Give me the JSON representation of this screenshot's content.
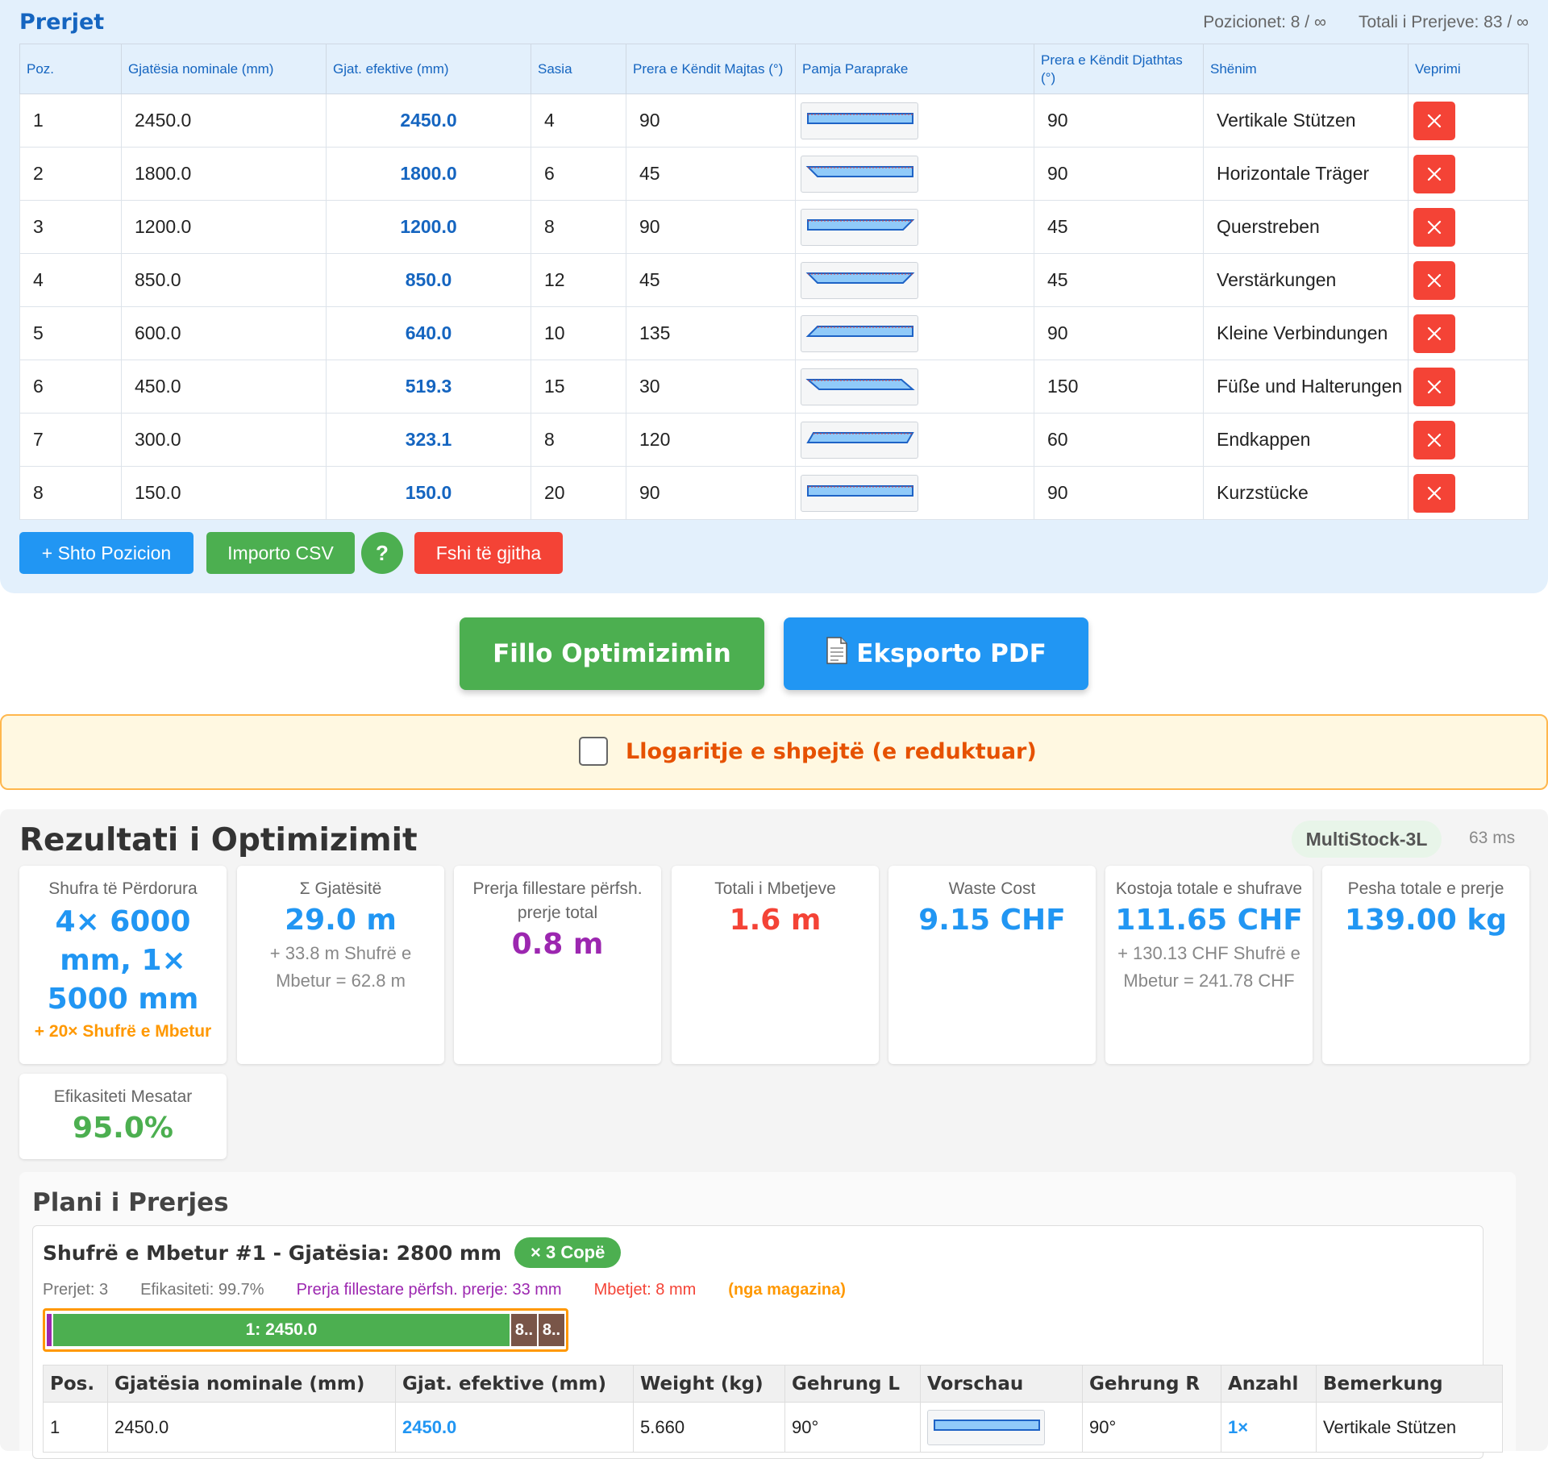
{
  "cuts": {
    "title": "Prerjet",
    "positions_stat": "Pozicionet: 8 / ∞",
    "total_stat": "Totali i Prerjeve: 83 / ∞",
    "columns": {
      "pos": "Poz.",
      "nominal": "Gjatësia nominale (mm)",
      "effective": "Gjat. efektive (mm)",
      "qty": "Sasia",
      "left_angle": "Prera e Këndit Majtas (°)",
      "preview": "Pamja Paraprake",
      "right_angle": "Prera e Këndit Djathtas (°)",
      "note": "Shënim",
      "action": "Veprimi"
    },
    "rows": [
      {
        "pos": "1",
        "nominal": "2450.0",
        "effective": "2450.0",
        "qty": "4",
        "left": "90",
        "right": "90",
        "note": "Vertikale Stützen"
      },
      {
        "pos": "2",
        "nominal": "1800.0",
        "effective": "1800.0",
        "qty": "6",
        "left": "45",
        "right": "90",
        "note": "Horizontale Träger"
      },
      {
        "pos": "3",
        "nominal": "1200.0",
        "effective": "1200.0",
        "qty": "8",
        "left": "90",
        "right": "45",
        "note": "Querstreben"
      },
      {
        "pos": "4",
        "nominal": "850.0",
        "effective": "850.0",
        "qty": "12",
        "left": "45",
        "right": "45",
        "note": "Verstärkungen"
      },
      {
        "pos": "5",
        "nominal": "600.0",
        "effective": "640.0",
        "qty": "10",
        "left": "135",
        "right": "90",
        "note": "Kleine Verbindungen"
      },
      {
        "pos": "6",
        "nominal": "450.0",
        "effective": "519.3",
        "qty": "15",
        "left": "30",
        "right": "150",
        "note": "Füße und Halterungen"
      },
      {
        "pos": "7",
        "nominal": "300.0",
        "effective": "323.1",
        "qty": "8",
        "left": "120",
        "right": "60",
        "note": "Endkappen"
      },
      {
        "pos": "8",
        "nominal": "150.0",
        "effective": "150.0",
        "qty": "20",
        "left": "90",
        "right": "90",
        "note": "Kurzstücke"
      }
    ],
    "buttons": {
      "add": "+ Shto Pozicion",
      "import": "Importo CSV",
      "help": "?",
      "clear": "Fshi të gjitha"
    }
  },
  "actions": {
    "optimize": "Fillo Optimizimin",
    "export": "Eksporto PDF"
  },
  "fast_mode": {
    "label": "Llogaritje e shpejtë (e reduktuar)",
    "checked": false
  },
  "results": {
    "title": "Rezultati i Optimizimit",
    "algorithm": "MultiStock-3L",
    "time": "63 ms",
    "cards": {
      "bars": {
        "label": "Shufra të Përdorura",
        "value": "4× 6000 mm, 1× 5000 mm",
        "sub": "+ 20× Shufrë e Mbetur"
      },
      "lengths": {
        "label": "Σ Gjatësitë",
        "value": "29.0 m",
        "sub": "+ 33.8 m Shufrë e Mbetur = 62.8 m"
      },
      "kerf": {
        "label": "Prerja fillestare përfsh. prerje total",
        "value": "0.8 m"
      },
      "waste": {
        "label": "Totali i Mbetjeve",
        "value": "1.6 m"
      },
      "waste_cost": {
        "label": "Waste Cost",
        "value": "9.15 CHF"
      },
      "cost": {
        "label": "Kostoja totale e shufrave",
        "value": "111.65 CHF",
        "sub": "+ 130.13 CHF Shufrë e Mbetur = 241.78 CHF"
      },
      "weight": {
        "label": "Pesha totale e prerje",
        "value": "139.00 kg"
      },
      "efficiency": {
        "label": "Efikasiteti Mesatar",
        "value": "95.0%"
      }
    }
  },
  "plan": {
    "title": "Plani i Prerjes",
    "bar": {
      "title": "Shufrë e Mbetur #1 - Gjatësia: 2800 mm",
      "copies": "× 3 Copë",
      "cuts": "Prerjet: 3",
      "efficiency": "Efikasiteti: 99.7%",
      "kerf": "Prerja fillestare përfsh. prerje: 33 mm",
      "waste": "Mbetjet: 8 mm",
      "source": "(nga magazina)",
      "segments": {
        "main": "1: 2450.0",
        "rest1": "8..",
        "rest2": "8.."
      },
      "columns": {
        "pos": "Pos.",
        "nominal": "Gjatësia nominale (mm)",
        "effective": "Gjat. efektive (mm)",
        "weight": "Weight (kg)",
        "miter_l": "Gehrung L",
        "preview": "Vorschau",
        "miter_r": "Gehrung R",
        "qty": "Anzahl",
        "note": "Bemerkung"
      },
      "rows": [
        {
          "pos": "1",
          "nominal": "2450.0",
          "effective": "2450.0",
          "weight": "5.660",
          "miter_l": "90°",
          "miter_r": "90°",
          "qty": "1×",
          "note": "Vertikale Stützen"
        }
      ]
    }
  },
  "colors": {
    "primary": "#2196f3",
    "success": "#4caf50",
    "danger": "#f44336",
    "warning": "#ff9800",
    "kerf": "#9c27b0",
    "title_blue": "#1565c0"
  }
}
